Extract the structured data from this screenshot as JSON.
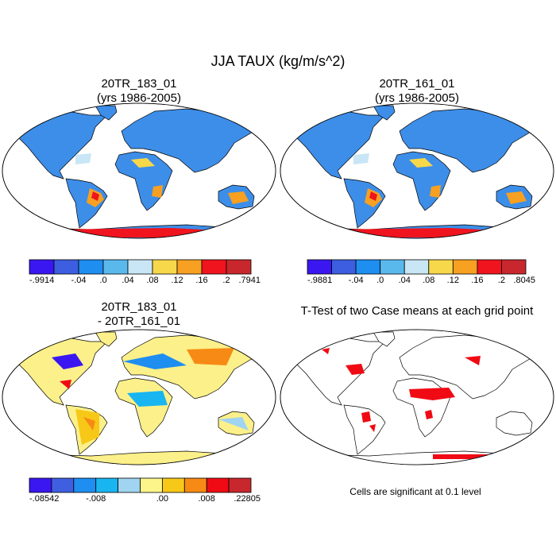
{
  "title": "JJA TAUX (kg/m/s^2)",
  "panels": [
    {
      "title": [
        "20TR_183_01",
        "(yrs 1986-2005)"
      ],
      "colorbar": {
        "labels": [
          "-.9914",
          "-.04",
          ".0",
          ".04",
          ".08",
          ".12",
          ".16",
          ".2",
          ".7941"
        ],
        "colors": [
          "#3a17f0",
          "#3d5ee0",
          "#1e8ef0",
          "#59b9ec",
          "#c8e6f5",
          "#f7d84a",
          "#f7a021",
          "#f0141e",
          "#c8282d"
        ]
      }
    },
    {
      "title": [
        "20TR_161_01",
        "(yrs 1986-2005)"
      ],
      "colorbar": {
        "labels": [
          "-.9881",
          "-.04",
          ".0",
          ".04",
          ".08",
          ".12",
          ".16",
          ".2",
          ".8045"
        ],
        "colors": [
          "#3a17f0",
          "#3d5ee0",
          "#1e8ef0",
          "#59b9ec",
          "#c8e6f5",
          "#f7d84a",
          "#f7a021",
          "#f0141e",
          "#c8282d"
        ]
      }
    },
    {
      "title": [
        "20TR_183_01",
        "- 20TR_161_01"
      ],
      "colorbar": {
        "labels": [
          "-.08542",
          "-.008",
          ".00",
          ".008",
          ".22805"
        ],
        "colors": [
          "#3a17f0",
          "#3f5fe0",
          "#1e8ef0",
          "#19b5f0",
          "#a0d4f0",
          "#fcf58a",
          "#f7c817",
          "#f78a14",
          "#f00a14",
          "#c8282d"
        ]
      }
    },
    {
      "title": [
        "T-Test of two Case means at each grid point"
      ],
      "note": "Cells are significant at 0.1 level"
    }
  ]
}
